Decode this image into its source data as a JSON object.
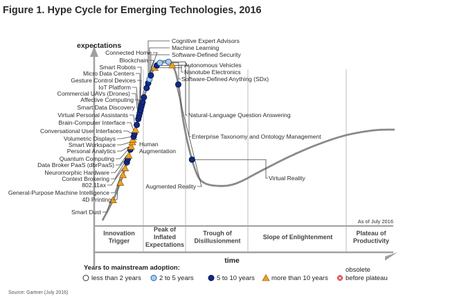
{
  "title": "Figure 1. Hype Cycle for Emerging Technologies, 2016",
  "source": "Source: Gartner (July 2016)",
  "chart_data": {
    "type": "line",
    "title": "Figure 1. Hype Cycle for Emerging Technologies, 2016",
    "xlabel": "time",
    "ylabel": "expectations",
    "as_of": "As of July 2016",
    "phases": [
      {
        "id": "innovation",
        "label": [
          "Innovation",
          "Trigger"
        ]
      },
      {
        "id": "peak",
        "label": [
          "Peak of",
          "Inflated",
          "Expectations"
        ]
      },
      {
        "id": "trough",
        "label": [
          "Trough of",
          "Disillusionment"
        ]
      },
      {
        "id": "slope",
        "label": [
          "Slope of Enlightenment"
        ]
      },
      {
        "id": "plateau",
        "label": [
          "Plateau of",
          "Productivity"
        ]
      }
    ],
    "legend": {
      "title": "Years to mainstream adoption:",
      "items": [
        {
          "key": "lt2",
          "label": "less than 2 years",
          "color": "#ffffff"
        },
        {
          "key": "2to5",
          "label": "2 to 5 years",
          "color": "#a9cdf0"
        },
        {
          "key": "5to10",
          "label": "5 to 10 years",
          "color": "#0f2a8a"
        },
        {
          "key": "gt10",
          "label": "more than 10 years",
          "color": "#f0a020"
        },
        {
          "key": "obsolete",
          "label": "before plateau",
          "label_top": "obsolete",
          "color": "#e03b3b"
        }
      ]
    },
    "technologies": [
      {
        "name": "Smart Dust",
        "t": 0.045,
        "cat": "gt10",
        "side": "left"
      },
      {
        "name": "4D Printing",
        "t": 0.082,
        "cat": "gt10",
        "side": "left"
      },
      {
        "name": "General-Purpose Machine Intelligence",
        "t": 0.098,
        "cat": "gt10",
        "side": "left"
      },
      {
        "name": "802.11ax",
        "t": 0.112,
        "cat": "gt10",
        "side": "left"
      },
      {
        "name": "Context Brokering",
        "t": 0.124,
        "cat": "5to10",
        "side": "left"
      },
      {
        "name": "Neuromorphic Hardware",
        "t": 0.131,
        "cat": "5to10",
        "side": "left"
      },
      {
        "name": "Data Broker PaaS (dbrPaaS)",
        "t": 0.138,
        "cat": "gt10",
        "side": "left"
      },
      {
        "name": "Quantum Computing",
        "t": 0.15,
        "cat": "5to10",
        "side": "left"
      },
      {
        "name": "Personal Analytics",
        "t": 0.156,
        "cat": "gt10",
        "side": "left"
      },
      {
        "name": "Smart Workspace",
        "t": 0.165,
        "cat": "gt10",
        "side": "left"
      },
      {
        "name": "Human Augmentation",
        "t": 0.17,
        "cat": "gt10",
        "side": "right"
      },
      {
        "name": "Volumetric Displays",
        "t": 0.176,
        "cat": "5to10",
        "side": "left"
      },
      {
        "name": "Conversational User Interfaces",
        "t": 0.182,
        "cat": "5to10",
        "side": "left"
      },
      {
        "name": "Brain-Computer Interface",
        "t": 0.19,
        "cat": "gt10",
        "side": "left"
      },
      {
        "name": "Virtual Personal Assistants",
        "t": 0.2,
        "cat": "5to10",
        "side": "left"
      },
      {
        "name": "Smart Data Discovery",
        "t": 0.212,
        "cat": "5to10",
        "side": "left"
      },
      {
        "name": "Affective Computing",
        "t": 0.218,
        "cat": "5to10",
        "side": "left"
      },
      {
        "name": "Commercial UAVs (Drones)",
        "t": 0.224,
        "cat": "5to10",
        "side": "left"
      },
      {
        "name": "IoT Platform",
        "t": 0.23,
        "cat": "5to10",
        "side": "left"
      },
      {
        "name": "Gesture Control Devices",
        "t": 0.236,
        "cat": "5to10",
        "side": "left"
      },
      {
        "name": "Micro Data Centers",
        "t": 0.241,
        "cat": "5to10",
        "side": "left"
      },
      {
        "name": "Smart Robots",
        "t": 0.246,
        "cat": "5to10",
        "side": "left"
      },
      {
        "name": "Blockchain",
        "t": 0.256,
        "cat": "5to10",
        "side": "left"
      },
      {
        "name": "Connected Home",
        "t": 0.275,
        "cat": "5to10",
        "side": "left"
      },
      {
        "name": "Cognitive Expert Advisors",
        "t": 0.285,
        "cat": "5to10",
        "side": "top"
      },
      {
        "name": "Machine Learning",
        "t": 0.293,
        "cat": "2to5",
        "side": "top"
      },
      {
        "name": "Software-Defined Security",
        "t": 0.301,
        "cat": "5to10",
        "side": "top"
      },
      {
        "name": "Autonomous Vehicles",
        "t": 0.318,
        "cat": "gt10",
        "side": "right"
      },
      {
        "name": "Nanotube Electronics",
        "t": 0.324,
        "cat": "5to10",
        "side": "right"
      },
      {
        "name": "Software-Defined Anything (SDx)",
        "t": 0.332,
        "cat": "2to5",
        "side": "right"
      },
      {
        "name": "Natural-Language Question Answering",
        "t": 0.35,
        "cat": "2to5",
        "side": "right"
      },
      {
        "name": "Enterprise Taxonomy and Ontology Management",
        "t": 0.36,
        "cat": "gt10",
        "side": "right"
      },
      {
        "name": "Augmented Reality",
        "t": 0.4,
        "cat": "5to10",
        "side": "left"
      },
      {
        "name": "Virtual Reality",
        "t": 0.55,
        "cat": "5to10",
        "side": "right"
      }
    ]
  }
}
